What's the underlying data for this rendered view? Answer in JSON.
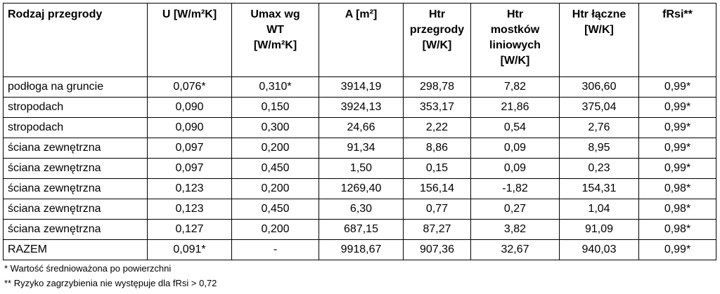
{
  "table": {
    "headers": [
      [
        "Rodzaj przegrody"
      ],
      [
        "U [W/m²K]"
      ],
      [
        "Umax wg",
        "WT",
        "[W/m²K]"
      ],
      [
        "A [m²]"
      ],
      [
        "Htr",
        "przegrody",
        "[W/K]"
      ],
      [
        "Htr",
        "mostków",
        "liniowych",
        "[W/K]"
      ],
      [
        "Htr łączne",
        "[W/K]"
      ],
      [
        "fRsi**"
      ]
    ],
    "rows": [
      [
        "podłoga na gruncie",
        "0,076*",
        "0,310*",
        "3914,19",
        "298,78",
        "7,82",
        "306,60",
        "0,99*"
      ],
      [
        "stropodach",
        "0,090",
        "0,150",
        "3924,13",
        "353,17",
        "21,86",
        "375,04",
        "0,99*"
      ],
      [
        "stropodach",
        "0,090",
        "0,300",
        "24,66",
        "2,22",
        "0,54",
        "2,76",
        "0,99*"
      ],
      [
        "ściana zewnętrzna",
        "0,097",
        "0,200",
        "91,34",
        "8,86",
        "0,09",
        "8,95",
        "0,99*"
      ],
      [
        "ściana zewnętrzna",
        "0,097",
        "0,450",
        "1,50",
        "0,15",
        "0,09",
        "0,23",
        "0,99*"
      ],
      [
        "ściana zewnętrzna",
        "0,123",
        "0,200",
        "1269,40",
        "156,14",
        "-1,82",
        "154,31",
        "0,98*"
      ],
      [
        "ściana zewnętrzna",
        "0,123",
        "0,450",
        "6,30",
        "0,77",
        "0,27",
        "1,04",
        "0,98*"
      ],
      [
        "ściana zewnętrzna",
        "0,127",
        "0,200",
        "687,15",
        "87,27",
        "3,82",
        "91,09",
        "0,98*"
      ],
      [
        "RAZEM",
        "0,091*",
        "-",
        "9918,67",
        "907,36",
        "32,67",
        "940,03",
        "0,99*"
      ]
    ]
  },
  "notes": [
    "* Wartość średnioważona po powierzchni",
    "** Ryzyko zagrzybienia nie występuje dla fRsi > 0,72"
  ]
}
